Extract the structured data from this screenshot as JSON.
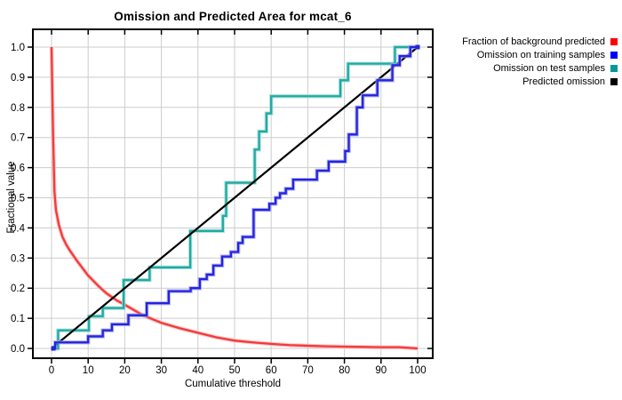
{
  "chart_data": {
    "type": "line",
    "title": "Omission and Predicted Area for mcat_6",
    "xlabel": "Cumulative threshold",
    "ylabel": "Fractional value",
    "xlim": [
      -5,
      104
    ],
    "ylim": [
      -0.032,
      1.06
    ],
    "xticks": [
      "0",
      "10",
      "20",
      "30",
      "40",
      "50",
      "60",
      "70",
      "80",
      "90",
      "100"
    ],
    "yticks": [
      "0.0",
      "0.1",
      "0.2",
      "0.3",
      "0.4",
      "0.5",
      "0.6",
      "0.7",
      "0.8",
      "0.9",
      "1.0"
    ],
    "grid": true,
    "grid_color": "#cccccc",
    "legend_position": "top-right-outside",
    "series": [
      {
        "name": "Fraction of background predicted",
        "kind": "curve",
        "color": "#f23b3b",
        "halo": "#ffb4b4",
        "legend_color": "#ff0000",
        "points": [
          [
            0,
            1.0
          ],
          [
            0.4,
            0.72
          ],
          [
            0.8,
            0.52
          ],
          [
            1.2,
            0.46
          ],
          [
            2,
            0.41
          ],
          [
            3,
            0.37
          ],
          [
            4,
            0.345
          ],
          [
            5,
            0.325
          ],
          [
            7,
            0.29
          ],
          [
            10,
            0.242
          ],
          [
            13,
            0.205
          ],
          [
            15,
            0.183
          ],
          [
            18,
            0.158
          ],
          [
            20,
            0.145
          ],
          [
            25,
            0.11
          ],
          [
            30,
            0.085
          ],
          [
            35,
            0.067
          ],
          [
            40,
            0.052
          ],
          [
            45,
            0.037
          ],
          [
            50,
            0.026
          ],
          [
            55,
            0.02
          ],
          [
            60,
            0.015
          ],
          [
            65,
            0.011
          ],
          [
            70,
            0.009
          ],
          [
            75,
            0.007
          ],
          [
            80,
            0.006
          ],
          [
            85,
            0.005
          ],
          [
            90,
            0.004
          ],
          [
            95,
            0.004
          ],
          [
            100,
            0
          ]
        ]
      },
      {
        "name": "Omission on training samples",
        "kind": "step",
        "color": "#2424dd",
        "halo": "#a0a0f2",
        "legend_color": "#0000ff",
        "markers": true,
        "points": [
          [
            0,
            0
          ],
          [
            1,
            0.02
          ],
          [
            10,
            0.04
          ],
          [
            14,
            0.06
          ],
          [
            16.5,
            0.08
          ],
          [
            21,
            0.11
          ],
          [
            26,
            0.15
          ],
          [
            32,
            0.19
          ],
          [
            38,
            0.2
          ],
          [
            40.5,
            0.23
          ],
          [
            42.4,
            0.245
          ],
          [
            44.2,
            0.275
          ],
          [
            46.6,
            0.305
          ],
          [
            49,
            0.32
          ],
          [
            51,
            0.35
          ],
          [
            52.2,
            0.37
          ],
          [
            55.2,
            0.46
          ],
          [
            59.5,
            0.48
          ],
          [
            61.2,
            0.5
          ],
          [
            62.4,
            0.515
          ],
          [
            64,
            0.53
          ],
          [
            66,
            0.56
          ],
          [
            72.5,
            0.59
          ],
          [
            75.7,
            0.62
          ],
          [
            80.2,
            0.655
          ],
          [
            81.2,
            0.71
          ],
          [
            83.4,
            0.8
          ],
          [
            85,
            0.84
          ],
          [
            89,
            0.89
          ],
          [
            93.1,
            0.94
          ],
          [
            95.1,
            0.97
          ],
          [
            98,
            1.0
          ],
          [
            100,
            1.0
          ]
        ]
      },
      {
        "name": "Omission on test samples",
        "kind": "step",
        "color": "#20aaa2",
        "halo": "#9cdcd6",
        "legend_color": "#009999",
        "points": [
          [
            0,
            0
          ],
          [
            1.8,
            0.06
          ],
          [
            10.2,
            0.107
          ],
          [
            14,
            0.134
          ],
          [
            19.7,
            0.227
          ],
          [
            26.8,
            0.269
          ],
          [
            37.9,
            0.39
          ],
          [
            46.8,
            0.44
          ],
          [
            47.7,
            0.55
          ],
          [
            55.5,
            0.66
          ],
          [
            56.7,
            0.72
          ],
          [
            58.7,
            0.78
          ],
          [
            60,
            0.837
          ],
          [
            78.9,
            0.89
          ],
          [
            81,
            0.945
          ],
          [
            93.8,
            1.0
          ],
          [
            100,
            1.0
          ]
        ]
      },
      {
        "name": "Predicted omission",
        "kind": "line",
        "color": "#000000",
        "halo": "none",
        "legend_color": "#000000",
        "points": [
          [
            0,
            0
          ],
          [
            100,
            1
          ]
        ]
      }
    ]
  }
}
